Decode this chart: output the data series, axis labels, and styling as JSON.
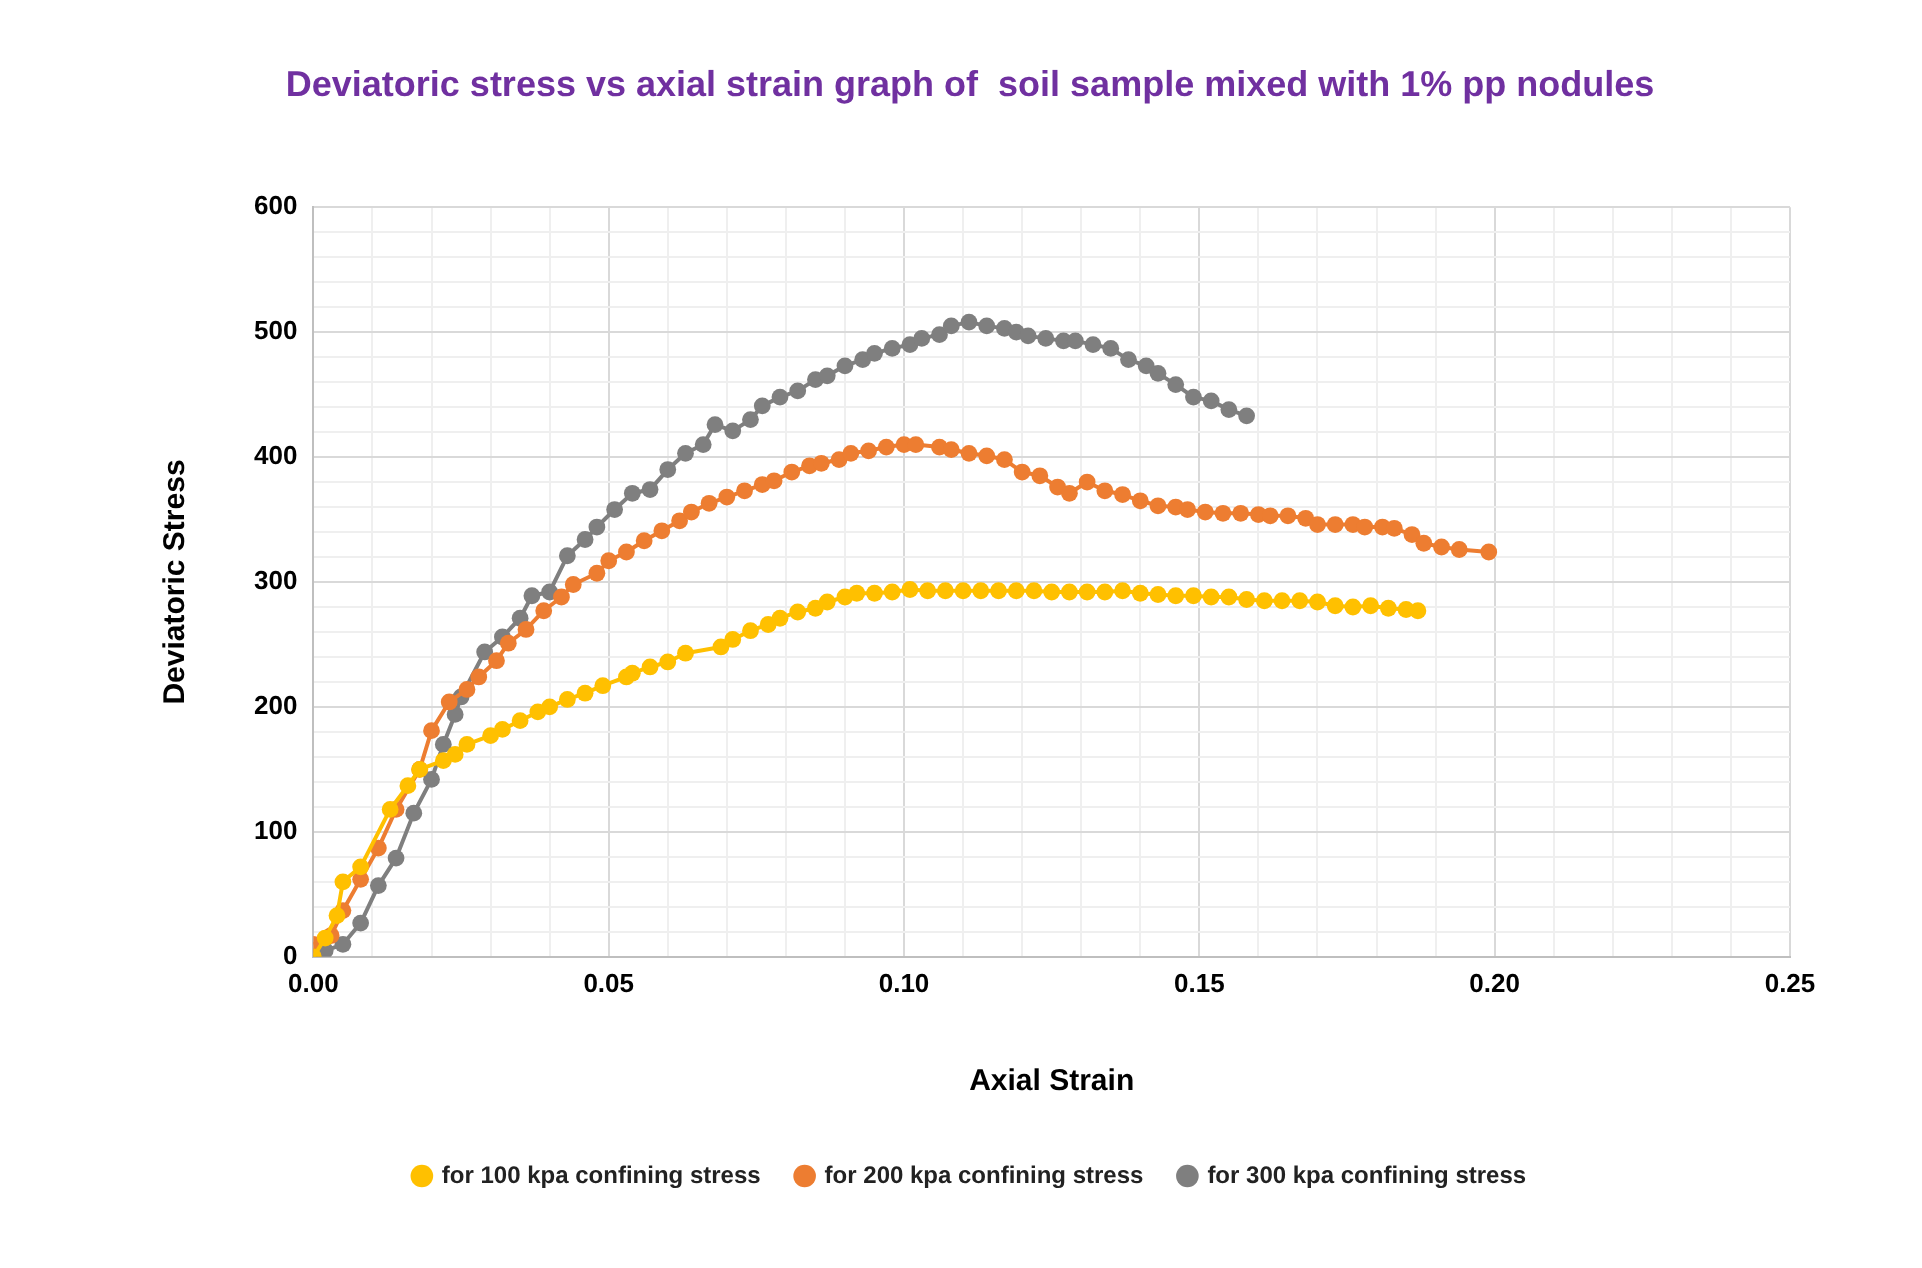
{
  "chart_data": {
    "type": "line",
    "title": "Deviatoric stress vs axial strain graph of  soil sample mixed with 1% pp nodules",
    "xlabel": "Axial Strain",
    "ylabel": "Deviatoric Stress",
    "xlim": [
      0,
      0.25
    ],
    "ylim": [
      0,
      600
    ],
    "xticks": [
      {
        "value": 0,
        "label": "0.00"
      },
      {
        "value": 0.01,
        "label": null
      },
      {
        "value": 0.02,
        "label": null
      },
      {
        "value": 0.03,
        "label": null
      },
      {
        "value": 0.04,
        "label": null
      },
      {
        "value": 0.05,
        "label": "0.05"
      },
      {
        "value": 0.06,
        "label": null
      },
      {
        "value": 0.07,
        "label": null
      },
      {
        "value": 0.08,
        "label": null
      },
      {
        "value": 0.09,
        "label": null
      },
      {
        "value": 0.1,
        "label": "0.10"
      },
      {
        "value": 0.11,
        "label": null
      },
      {
        "value": 0.12,
        "label": null
      },
      {
        "value": 0.13,
        "label": null
      },
      {
        "value": 0.14,
        "label": null
      },
      {
        "value": 0.15,
        "label": "0.15"
      },
      {
        "value": 0.16,
        "label": null
      },
      {
        "value": 0.17,
        "label": null
      },
      {
        "value": 0.18,
        "label": null
      },
      {
        "value": 0.19,
        "label": null
      },
      {
        "value": 0.2,
        "label": "0.20"
      },
      {
        "value": 0.21,
        "label": null
      },
      {
        "value": 0.22,
        "label": null
      },
      {
        "value": 0.23,
        "label": null
      },
      {
        "value": 0.24,
        "label": null
      },
      {
        "value": 0.25,
        "label": "0.25"
      }
    ],
    "yticks": [
      0,
      {
        "value": 20,
        "label": null
      },
      {
        "value": 40,
        "label": null
      },
      {
        "value": 60,
        "label": null
      },
      {
        "value": 80,
        "label": null
      },
      100,
      {
        "value": 120,
        "label": null
      },
      {
        "value": 140,
        "label": null
      },
      {
        "value": 160,
        "label": null
      },
      {
        "value": 180,
        "label": null
      },
      200,
      {
        "value": 220,
        "label": null
      },
      {
        "value": 240,
        "label": null
      },
      {
        "value": 260,
        "label": null
      },
      {
        "value": 280,
        "label": null
      },
      300,
      {
        "value": 320,
        "label": null
      },
      {
        "value": 340,
        "label": null
      },
      {
        "value": 360,
        "label": null
      },
      {
        "value": 380,
        "label": null
      },
      400,
      {
        "value": 420,
        "label": null
      },
      {
        "value": 440,
        "label": null
      },
      {
        "value": 460,
        "label": null
      },
      {
        "value": 480,
        "label": null
      },
      500,
      {
        "value": 520,
        "label": null
      },
      {
        "value": 540,
        "label": null
      },
      {
        "value": 560,
        "label": null
      },
      {
        "value": 580,
        "label": null
      },
      600
    ],
    "grid": true,
    "legend": "bottom",
    "marker": "circle",
    "line_style": "solid",
    "series": [
      {
        "name": "for 100 kpa confining stress",
        "color": "#ffc000",
        "x": [
          0,
          0.002,
          0.004,
          0.005,
          0.008,
          0.013,
          0.016,
          0.018,
          0.022,
          0.024,
          0.026,
          0.03,
          0.032,
          0.035,
          0.038,
          0.04,
          0.043,
          0.046,
          0.049,
          0.053,
          0.054,
          0.057,
          0.06,
          0.063,
          0.069,
          0.071,
          0.074,
          0.077,
          0.079,
          0.082,
          0.085,
          0.087,
          0.09,
          0.092,
          0.095,
          0.098,
          0.101,
          0.104,
          0.107,
          0.11,
          0.113,
          0.116,
          0.119,
          0.122,
          0.125,
          0.128,
          0.131,
          0.134,
          0.137,
          0.14,
          0.143,
          0.146,
          0.149,
          0.152,
          0.155,
          0.158,
          0.161,
          0.164,
          0.167,
          0.17,
          0.173,
          0.176,
          0.179,
          0.182,
          0.185,
          0.187
        ],
        "values": [
          0,
          15,
          33,
          60,
          72,
          118,
          137,
          150,
          157,
          162,
          170,
          177,
          182,
          189,
          196,
          200,
          206,
          211,
          217,
          224,
          227,
          232,
          236,
          243,
          248,
          254,
          261,
          266,
          271,
          276,
          279,
          284,
          288,
          291,
          291,
          292,
          294,
          293,
          293,
          293,
          293,
          293,
          293,
          293,
          292,
          292,
          292,
          292,
          293,
          291,
          290,
          289,
          289,
          288,
          288,
          286,
          285,
          285,
          285,
          284,
          281,
          280,
          281,
          279,
          278,
          277
        ]
      },
      {
        "name": "for 200 kpa confining stress",
        "color": "#ed7d31",
        "x": [
          0,
          0.003,
          0.005,
          0.008,
          0.011,
          0.014,
          0.018,
          0.02,
          0.023,
          0.026,
          0.028,
          0.031,
          0.033,
          0.036,
          0.039,
          0.042,
          0.044,
          0.048,
          0.05,
          0.053,
          0.056,
          0.059,
          0.062,
          0.064,
          0.067,
          0.07,
          0.073,
          0.076,
          0.078,
          0.081,
          0.084,
          0.086,
          0.089,
          0.091,
          0.094,
          0.097,
          0.1,
          0.102,
          0.106,
          0.108,
          0.111,
          0.114,
          0.117,
          0.12,
          0.123,
          0.126,
          0.128,
          0.131,
          0.134,
          0.137,
          0.14,
          0.143,
          0.146,
          0.148,
          0.151,
          0.154,
          0.157,
          0.16,
          0.162,
          0.165,
          0.168,
          0.17,
          0.173,
          0.176,
          0.178,
          0.181,
          0.183,
          0.186,
          0.188,
          0.191,
          0.194,
          0.199
        ],
        "values": [
          10,
          17,
          37,
          62,
          87,
          118,
          150,
          181,
          204,
          214,
          224,
          237,
          251,
          262,
          277,
          288,
          298,
          307,
          317,
          324,
          333,
          341,
          349,
          356,
          363,
          368,
          373,
          378,
          381,
          388,
          393,
          395,
          398,
          403,
          405,
          408,
          410,
          410,
          408,
          406,
          403,
          401,
          398,
          388,
          385,
          376,
          371,
          380,
          373,
          370,
          365,
          361,
          360,
          358,
          356,
          355,
          355,
          354,
          353,
          353,
          351,
          346,
          346,
          346,
          344,
          344,
          343,
          338,
          331,
          328,
          326,
          324
        ]
      },
      {
        "name": "for 300 kpa confining stress",
        "color": "#7f7f7f",
        "x": [
          0,
          0.002,
          0.005,
          0.008,
          0.011,
          0.014,
          0.017,
          0.02,
          0.022,
          0.024,
          0.025,
          0.029,
          0.032,
          0.035,
          0.037,
          0.04,
          0.043,
          0.046,
          0.048,
          0.051,
          0.054,
          0.057,
          0.06,
          0.063,
          0.066,
          0.068,
          0.071,
          0.074,
          0.076,
          0.079,
          0.082,
          0.085,
          0.087,
          0.09,
          0.093,
          0.095,
          0.098,
          0.101,
          0.103,
          0.106,
          0.108,
          0.111,
          0.114,
          0.117,
          0.119,
          0.121,
          0.124,
          0.127,
          0.129,
          0.132,
          0.135,
          0.138,
          0.141,
          0.143,
          0.146,
          0.149,
          0.152,
          0.155,
          0.158
        ],
        "values": [
          0,
          5,
          10,
          27,
          57,
          79,
          115,
          142,
          170,
          194,
          208,
          244,
          256,
          271,
          289,
          292,
          321,
          334,
          344,
          358,
          371,
          374,
          390,
          403,
          410,
          426,
          421,
          430,
          441,
          448,
          453,
          462,
          465,
          473,
          478,
          483,
          487,
          490,
          495,
          498,
          505,
          508,
          505,
          503,
          500,
          497,
          495,
          493,
          493,
          490,
          487,
          478,
          473,
          467,
          458,
          448,
          445,
          438,
          433
        ]
      }
    ]
  }
}
